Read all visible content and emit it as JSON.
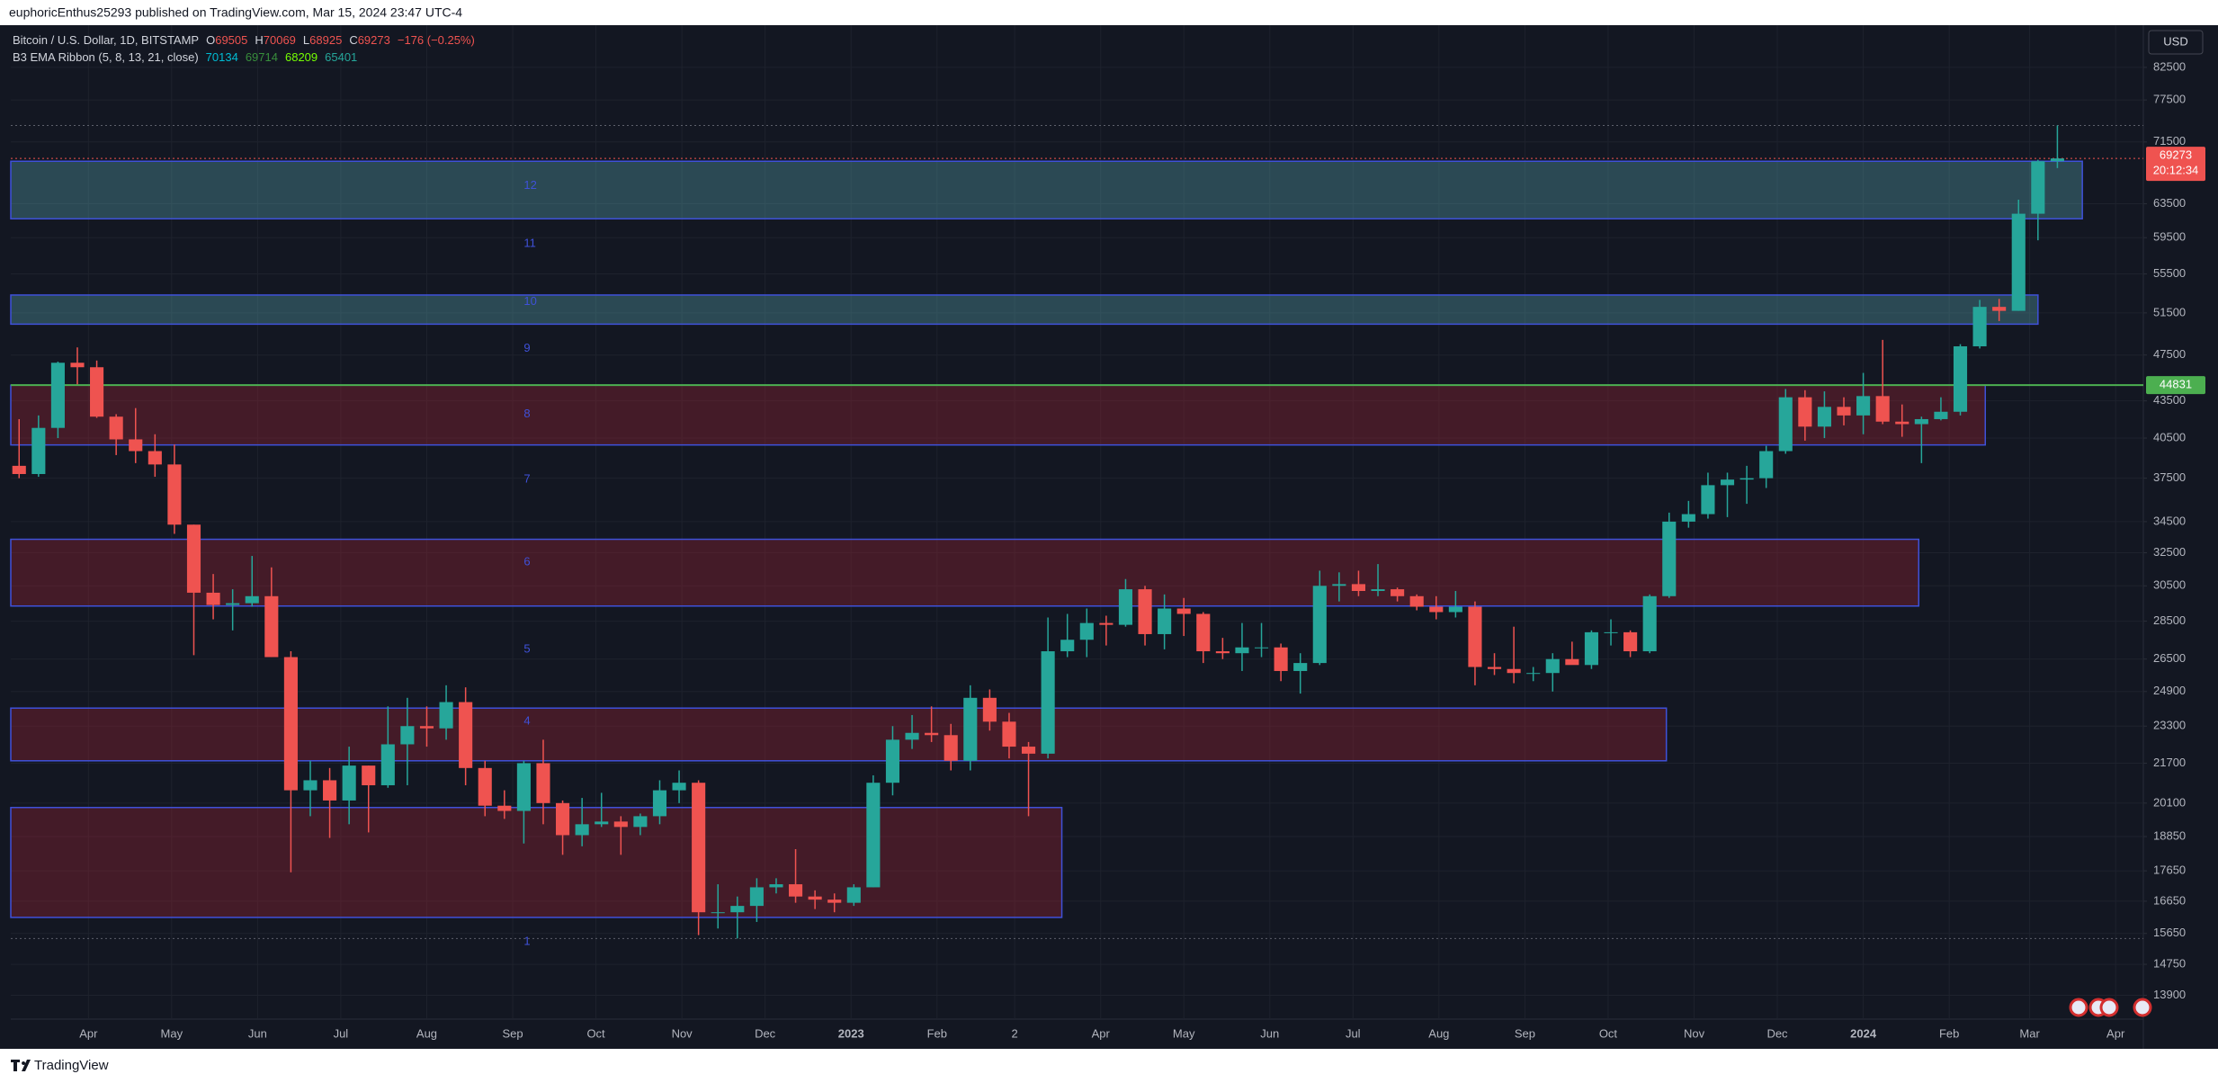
{
  "header": {
    "byline": "euphoricEnthus25293 published on TradingView.com, Mar 15, 2024 23:47 UTC-4"
  },
  "legend": {
    "symbol": "Bitcoin / U.S. Dollar, 1D, BITSTAMP",
    "ohlc": [
      {
        "key": "O",
        "value": 69505
      },
      {
        "key": "H",
        "value": 70069
      },
      {
        "key": "L",
        "value": 68925
      },
      {
        "key": "C",
        "value": 69273
      }
    ],
    "change": "−176 (−0.25%)",
    "indicator": "B3 EMA Ribbon (5, 8, 13, 21, close)",
    "indicator_values": [
      {
        "value": 70134,
        "color": "#00bcd4"
      },
      {
        "value": 69714,
        "color": "#388e3c"
      },
      {
        "value": 68209,
        "color": "#76ff03"
      },
      {
        "value": 65401,
        "color": "#26a69a"
      }
    ]
  },
  "footer": "TradingView",
  "chart_data": {
    "type": "candlestick",
    "log_y": true,
    "grid": true,
    "currency": "USD",
    "up_color": "#26a69a",
    "down_color": "#ef5350",
    "ylim": [
      13300,
      89000
    ],
    "yticks": [
      82500,
      77500,
      71500,
      63500,
      59500,
      55500,
      51500,
      47500,
      43500,
      40500,
      37500,
      34500,
      32500,
      30500,
      28500,
      26500,
      24900,
      23300,
      21700,
      20100,
      18850,
      17650,
      16650,
      15650,
      14750,
      13900
    ],
    "xlim": [
      "2022-03-04",
      "2024-04-11"
    ],
    "xticks": [
      {
        "value": "2022-04-01",
        "label": "Apr"
      },
      {
        "value": "2022-05-01",
        "label": "May"
      },
      {
        "value": "2022-06-01",
        "label": "Jun"
      },
      {
        "value": "2022-07-01",
        "label": "Jul"
      },
      {
        "value": "2022-08-01",
        "label": "Aug"
      },
      {
        "value": "2022-09-01",
        "label": "Sep"
      },
      {
        "value": "2022-10-01",
        "label": "Oct"
      },
      {
        "value": "2022-11-01",
        "label": "Nov"
      },
      {
        "value": "2022-12-01",
        "label": "Dec"
      },
      {
        "value": "2023-01-01",
        "label": "2023"
      },
      {
        "value": "2023-02-01",
        "label": "Feb"
      },
      {
        "value": "2023-03-01",
        "label": "2"
      },
      {
        "value": "2023-04-01",
        "label": "Apr"
      },
      {
        "value": "2023-05-01",
        "label": "May"
      },
      {
        "value": "2023-06-01",
        "label": "Jun"
      },
      {
        "value": "2023-07-01",
        "label": "Jul"
      },
      {
        "value": "2023-08-01",
        "label": "Aug"
      },
      {
        "value": "2023-09-01",
        "label": "Sep"
      },
      {
        "value": "2023-10-01",
        "label": "Oct"
      },
      {
        "value": "2023-11-01",
        "label": "Nov"
      },
      {
        "value": "2023-12-01",
        "label": "Dec"
      },
      {
        "value": "2024-01-01",
        "label": "2024"
      },
      {
        "value": "2024-02-01",
        "label": "Feb"
      },
      {
        "value": "2024-03-01",
        "label": "Mar"
      },
      {
        "value": "2024-04-01",
        "label": "Apr"
      }
    ],
    "x": [
      "2022-03-07",
      "2022-03-14",
      "2022-03-21",
      "2022-03-28",
      "2022-04-04",
      "2022-04-11",
      "2022-04-18",
      "2022-04-25",
      "2022-05-02",
      "2022-05-09",
      "2022-05-16",
      "2022-05-23",
      "2022-05-30",
      "2022-06-06",
      "2022-06-13",
      "2022-06-20",
      "2022-06-27",
      "2022-07-04",
      "2022-07-11",
      "2022-07-18",
      "2022-07-25",
      "2022-08-01",
      "2022-08-08",
      "2022-08-15",
      "2022-08-22",
      "2022-08-29",
      "2022-09-05",
      "2022-09-12",
      "2022-09-19",
      "2022-09-26",
      "2022-10-03",
      "2022-10-10",
      "2022-10-17",
      "2022-10-24",
      "2022-10-31",
      "2022-11-07",
      "2022-11-14",
      "2022-11-21",
      "2022-11-28",
      "2022-12-05",
      "2022-12-12",
      "2022-12-19",
      "2022-12-26",
      "2023-01-02",
      "2023-01-09",
      "2023-01-16",
      "2023-01-23",
      "2023-01-30",
      "2023-02-06",
      "2023-02-13",
      "2023-02-20",
      "2023-02-27",
      "2023-03-06",
      "2023-03-13",
      "2023-03-20",
      "2023-03-27",
      "2023-04-03",
      "2023-04-10",
      "2023-04-17",
      "2023-04-24",
      "2023-05-01",
      "2023-05-08",
      "2023-05-15",
      "2023-05-22",
      "2023-05-29",
      "2023-06-05",
      "2023-06-12",
      "2023-06-19",
      "2023-06-26",
      "2023-07-03",
      "2023-07-10",
      "2023-07-17",
      "2023-07-24",
      "2023-07-31",
      "2023-08-07",
      "2023-08-14",
      "2023-08-21",
      "2023-08-28",
      "2023-09-04",
      "2023-09-11",
      "2023-09-18",
      "2023-09-25",
      "2023-10-02",
      "2023-10-09",
      "2023-10-16",
      "2023-10-23",
      "2023-10-30",
      "2023-11-06",
      "2023-11-13",
      "2023-11-20",
      "2023-11-27",
      "2023-12-04",
      "2023-12-11",
      "2023-12-18",
      "2023-12-25",
      "2024-01-01",
      "2024-01-08",
      "2024-01-15",
      "2024-01-22",
      "2024-01-29",
      "2024-02-05",
      "2024-02-12",
      "2024-02-19",
      "2024-02-26",
      "2024-03-04",
      "2024-03-11"
    ],
    "open": [
      38400,
      37800,
      41300,
      46800,
      46400,
      42200,
      40400,
      39500,
      38500,
      34300,
      30100,
      29400,
      29500,
      29900,
      26600,
      20600,
      21000,
      20200,
      21600,
      20800,
      22500,
      23300,
      23200,
      24400,
      21500,
      20000,
      19800,
      21700,
      20100,
      18900,
      19300,
      19400,
      19200,
      19600,
      20600,
      20900,
      16300,
      16300,
      16500,
      17100,
      17200,
      16800,
      16700,
      16600,
      17100,
      20900,
      22700,
      23000,
      22900,
      21800,
      24600,
      23500,
      22400,
      22100,
      26900,
      27500,
      28400,
      28300,
      30300,
      27800,
      29200,
      28900,
      26900,
      26800,
      27100,
      27100,
      25900,
      26300,
      30500,
      30600,
      30200,
      30300,
      29900,
      29300,
      29000,
      29300,
      26100,
      26000,
      25800,
      25800,
      26500,
      26200,
      27900,
      27900,
      26900,
      29900,
      34500,
      35000,
      37000,
      37400,
      37500,
      39500,
      43800,
      41400,
      43000,
      42300,
      43900,
      41800,
      41600,
      42000,
      42600,
      48300,
      52100,
      51700,
      62300,
      68900
    ],
    "high": [
      42000,
      42300,
      46900,
      48200,
      47000,
      42400,
      42900,
      40800,
      40000,
      34300,
      31200,
      30300,
      32300,
      31600,
      26900,
      21800,
      21500,
      22400,
      21600,
      24200,
      24600,
      24200,
      25200,
      25100,
      21800,
      20600,
      21800,
      22700,
      20200,
      20300,
      20500,
      19600,
      19700,
      21000,
      21400,
      21000,
      17200,
      16800,
      17400,
      17400,
      18400,
      17000,
      16900,
      17200,
      21200,
      23300,
      23800,
      24200,
      23400,
      25200,
      25000,
      23900,
      22600,
      28700,
      28900,
      29200,
      28800,
      30900,
      30500,
      30000,
      29800,
      29000,
      27600,
      28400,
      28400,
      27300,
      26800,
      31400,
      31300,
      31400,
      31800,
      30400,
      30000,
      29900,
      30200,
      29600,
      26800,
      28200,
      26100,
      26800,
      27400,
      28000,
      28600,
      28000,
      30000,
      35100,
      35900,
      37900,
      37900,
      38400,
      39900,
      44500,
      44400,
      44300,
      43800,
      45900,
      48900,
      43200,
      42200,
      43800,
      48500,
      52800,
      52900,
      64000,
      69100,
      73800
    ],
    "low": [
      37500,
      37600,
      40500,
      44900,
      42100,
      39200,
      38600,
      37600,
      33700,
      26700,
      28600,
      28000,
      29300,
      26600,
      17600,
      19600,
      18800,
      19300,
      19000,
      20700,
      20800,
      22400,
      22700,
      20800,
      19600,
      19500,
      18600,
      19300,
      18200,
      18500,
      19200,
      18200,
      18900,
      19300,
      20100,
      15600,
      15800,
      15500,
      16000,
      16900,
      16600,
      16400,
      16300,
      16500,
      17100,
      20400,
      22300,
      22600,
      21400,
      21400,
      23100,
      21900,
      19600,
      21900,
      26600,
      26600,
      27200,
      28200,
      27200,
      27000,
      27700,
      26300,
      26500,
      25900,
      26600,
      25400,
      24800,
      26200,
      29600,
      29900,
      29900,
      29600,
      29100,
      28600,
      28700,
      25200,
      25700,
      25300,
      25400,
      24900,
      26300,
      26000,
      27200,
      26600,
      26800,
      29800,
      34100,
      34700,
      34800,
      35700,
      36800,
      39300,
      40300,
      40500,
      41500,
      40800,
      41600,
      40600,
      38600,
      41900,
      42300,
      48100,
      50700,
      51700,
      59200,
      68000
    ],
    "close": [
      37800,
      41300,
      46800,
      46400,
      42200,
      40400,
      39500,
      38500,
      34300,
      30100,
      29400,
      29500,
      29900,
      26600,
      20600,
      21000,
      20200,
      21600,
      20800,
      22500,
      23300,
      23200,
      24400,
      21500,
      20000,
      19800,
      21700,
      20100,
      18900,
      19300,
      19400,
      19200,
      19600,
      20600,
      20900,
      16300,
      16300,
      16500,
      17100,
      17200,
      16800,
      16700,
      16600,
      17100,
      20900,
      22700,
      23000,
      22900,
      21800,
      24600,
      23500,
      22400,
      22100,
      26900,
      27500,
      28400,
      28300,
      30300,
      27800,
      29200,
      28900,
      26900,
      26800,
      27100,
      27100,
      25900,
      26300,
      30500,
      30600,
      30200,
      30300,
      29900,
      29300,
      29000,
      29300,
      26100,
      26000,
      25800,
      25800,
      26500,
      26200,
      27900,
      27900,
      26900,
      29900,
      34500,
      35000,
      37000,
      37400,
      37500,
      39500,
      43800,
      41400,
      43000,
      42300,
      43900,
      41800,
      41600,
      42000,
      42600,
      48300,
      52100,
      51700,
      62300,
      68900,
      69273
    ],
    "zones": [
      {
        "top": 68900,
        "bottom": 61700,
        "start": "2022-03-04",
        "end": "2024-03-20",
        "color": "#4f95a0"
      },
      {
        "top": 53300,
        "bottom": 50400,
        "start": "2022-03-04",
        "end": "2024-03-04",
        "color": "#4f95a0"
      },
      {
        "top": 44831,
        "bottom": 39970,
        "start": "2022-03-04",
        "end": "2024-02-14",
        "color": "#8e2233"
      },
      {
        "top": 33350,
        "bottom": 29340,
        "start": "2022-03-04",
        "end": "2024-01-21",
        "color": "#8e2233"
      },
      {
        "top": 24120,
        "bottom": 21800,
        "start": "2022-03-04",
        "end": "2023-10-22",
        "color": "#8e2233"
      },
      {
        "top": 19930,
        "bottom": 16140,
        "start": "2022-03-04",
        "end": "2023-03-18",
        "color": "#8e2233"
      }
    ],
    "zone_border": "#3f51d9",
    "level_labels_x": "2022-09-05",
    "level_labels": [
      {
        "label": "12",
        "price": 65700
      },
      {
        "label": "11",
        "price": 58800
      },
      {
        "label": "10",
        "price": 52600
      },
      {
        "label": "9",
        "price": 48100
      },
      {
        "label": "8",
        "price": 42400
      },
      {
        "label": "7",
        "price": 37400
      },
      {
        "label": "6",
        "price": 31900
      },
      {
        "label": "5",
        "price": 27000
      },
      {
        "label": "4",
        "price": 23500
      },
      {
        "label": "3",
        "price": 21200
      },
      {
        "label": "1",
        "price": 15400
      }
    ],
    "hline": {
      "value": 44831,
      "color": "#4caf50"
    },
    "hi_lo_lines": [
      73800,
      15500
    ],
    "last_price": {
      "value": 69273,
      "countdown": "20:12:34",
      "color": "#ef5350"
    }
  }
}
